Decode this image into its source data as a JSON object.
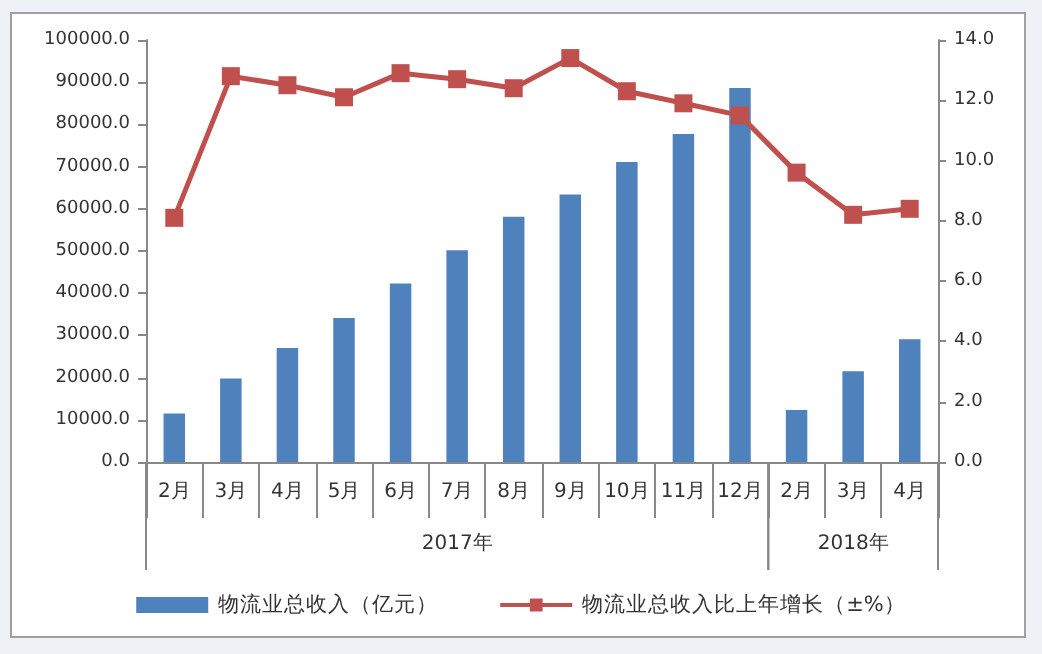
{
  "chart_data": {
    "type": "bar",
    "categories": [
      "2月",
      "3月",
      "4月",
      "5月",
      "6月",
      "7月",
      "8月",
      "9月",
      "10月",
      "11月",
      "12月",
      "2月",
      "3月",
      "4月"
    ],
    "series": [
      {
        "name": "物流业总收入（亿元）",
        "color": "#4f81bd",
        "values": [
          11500,
          19800,
          27000,
          34100,
          42300,
          50200,
          58100,
          63400,
          71100,
          77700,
          88600,
          12300,
          21500,
          29100
        ]
      },
      {
        "name": "物流业总收入比上年增长（±%）",
        "type": "line",
        "axis": "y2",
        "color": "#c0504d",
        "values": [
          8.1,
          12.8,
          12.5,
          12.1,
          12.9,
          12.7,
          12.4,
          13.4,
          12.3,
          11.9,
          11.5,
          9.6,
          8.2,
          8.4
        ]
      }
    ],
    "ylim": [
      0,
      100000
    ],
    "yticks": [
      {
        "value": 0,
        "label": "0.0"
      },
      {
        "value": 10000,
        "label": "10000.0"
      },
      {
        "value": 20000,
        "label": "20000.0"
      },
      {
        "value": 30000,
        "label": "30000.0"
      },
      {
        "value": 40000,
        "label": "40000.0"
      },
      {
        "value": 50000,
        "label": "50000.0"
      },
      {
        "value": 60000,
        "label": "60000.0"
      },
      {
        "value": 70000,
        "label": "70000.0"
      },
      {
        "value": 80000,
        "label": "80000.0"
      },
      {
        "value": 90000,
        "label": "90000.0"
      },
      {
        "value": 100000,
        "label": "100000.0"
      }
    ],
    "y2lim": [
      0,
      14
    ],
    "y2ticks": [
      {
        "value": 0,
        "label": "0.0"
      },
      {
        "value": 2,
        "label": "2.0"
      },
      {
        "value": 4,
        "label": "4.0"
      },
      {
        "value": 6,
        "label": "6.0"
      },
      {
        "value": 8,
        "label": "8.0"
      },
      {
        "value": 10,
        "label": "10.0"
      },
      {
        "value": 12,
        "label": "12.0"
      },
      {
        "value": 14,
        "label": "14.0"
      }
    ],
    "annotations": [
      "2017年",
      "2018年"
    ],
    "marker": "square",
    "grid": false,
    "legend": "bottom"
  }
}
